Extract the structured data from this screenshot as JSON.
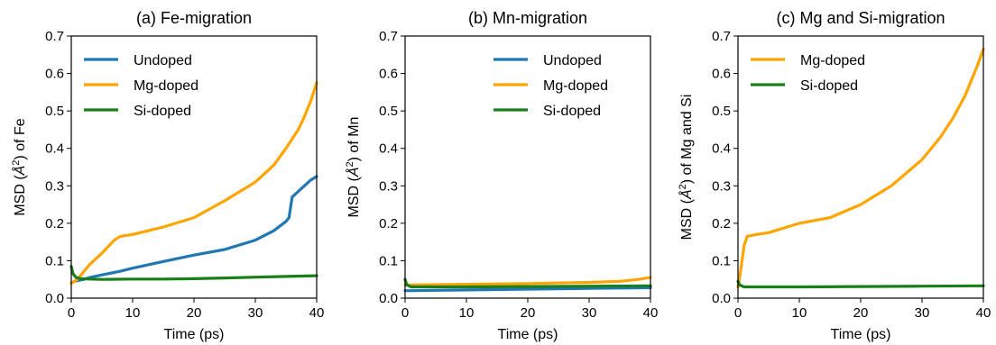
{
  "colors": {
    "undoped": "#1f77b4",
    "mg": "#ffa500",
    "si": "#1a7f1a"
  },
  "chart_data": [
    {
      "type": "line",
      "title": "(a) Fe-migration",
      "xlabel": "Time (ps)",
      "ylabel_prefix": "MSD (",
      "ylabel_symbol": "Å",
      "ylabel_sup": "2",
      "ylabel_suffix": ") of Fe",
      "xlim": [
        0,
        40
      ],
      "ylim": [
        0,
        0.7
      ],
      "xticks": [
        "0",
        "10",
        "20",
        "30",
        "40"
      ],
      "yticks": [
        "0.0",
        "0.1",
        "0.2",
        "0.3",
        "0.4",
        "0.5",
        "0.6",
        "0.7"
      ],
      "legend_position": "top-left",
      "series": [
        {
          "name": "Undoped",
          "color_key": "undoped",
          "x": [
            0,
            0.5,
            1,
            2,
            3,
            5,
            8,
            10,
            15,
            20,
            25,
            30,
            33,
            35,
            35.5,
            36,
            37,
            38,
            39,
            40
          ],
          "y": [
            0.04,
            0.045,
            0.047,
            0.05,
            0.055,
            0.062,
            0.072,
            0.08,
            0.098,
            0.115,
            0.13,
            0.155,
            0.18,
            0.205,
            0.215,
            0.27,
            0.285,
            0.3,
            0.315,
            0.325
          ]
        },
        {
          "name": "Mg-doped",
          "color_key": "mg",
          "x": [
            0,
            1,
            2,
            3,
            5,
            7,
            8,
            10,
            15,
            20,
            25,
            30,
            33,
            35,
            37,
            38,
            39,
            40
          ],
          "y": [
            0.04,
            0.05,
            0.07,
            0.09,
            0.12,
            0.155,
            0.165,
            0.17,
            0.19,
            0.215,
            0.26,
            0.31,
            0.355,
            0.4,
            0.45,
            0.485,
            0.525,
            0.575
          ]
        },
        {
          "name": "Si-doped",
          "color_key": "si",
          "x": [
            0,
            0.3,
            0.8,
            1.5,
            3,
            5,
            10,
            15,
            20,
            25,
            30,
            35,
            40
          ],
          "y": [
            0.085,
            0.065,
            0.055,
            0.052,
            0.051,
            0.05,
            0.051,
            0.051,
            0.052,
            0.054,
            0.056,
            0.058,
            0.06
          ]
        }
      ]
    },
    {
      "type": "line",
      "title": "(b) Mn-migration",
      "xlabel": "Time (ps)",
      "ylabel_prefix": "MSD (",
      "ylabel_symbol": "Å",
      "ylabel_sup": "2",
      "ylabel_suffix": ") of Mn",
      "xlim": [
        0,
        40
      ],
      "ylim": [
        0,
        0.7
      ],
      "xticks": [
        "0",
        "10",
        "20",
        "30",
        "40"
      ],
      "yticks": [
        "0.0",
        "0.1",
        "0.2",
        "0.3",
        "0.4",
        "0.5",
        "0.6",
        "0.7"
      ],
      "legend_position": "top-right",
      "series": [
        {
          "name": "Undoped",
          "color_key": "undoped",
          "x": [
            0,
            1,
            5,
            10,
            20,
            30,
            40
          ],
          "y": [
            0.02,
            0.02,
            0.021,
            0.022,
            0.024,
            0.026,
            0.028
          ]
        },
        {
          "name": "Mg-doped",
          "color_key": "mg",
          "x": [
            0,
            1,
            5,
            10,
            20,
            30,
            35,
            38,
            40
          ],
          "y": [
            0.035,
            0.035,
            0.036,
            0.037,
            0.039,
            0.042,
            0.045,
            0.05,
            0.055
          ]
        },
        {
          "name": "Si-doped",
          "color_key": "si",
          "x": [
            0,
            0.3,
            1,
            3,
            10,
            20,
            30,
            40
          ],
          "y": [
            0.05,
            0.035,
            0.03,
            0.03,
            0.03,
            0.031,
            0.032,
            0.033
          ]
        }
      ]
    },
    {
      "type": "line",
      "title": "(c) Mg and Si-migration",
      "xlabel": "Time (ps)",
      "ylabel_prefix": "MSD (",
      "ylabel_symbol": "Å",
      "ylabel_sup": "2",
      "ylabel_suffix": ") of Mg and Si",
      "xlim": [
        0,
        40
      ],
      "ylim": [
        0,
        0.7
      ],
      "xticks": [
        "0",
        "10",
        "20",
        "30",
        "40"
      ],
      "yticks": [
        "0.0",
        "0.1",
        "0.2",
        "0.3",
        "0.4",
        "0.5",
        "0.6",
        "0.7"
      ],
      "legend_position": "top-left",
      "series": [
        {
          "name": "Mg-doped",
          "color_key": "mg",
          "x": [
            0,
            0.5,
            1,
            1.5,
            3,
            5,
            8,
            10,
            15,
            20,
            25,
            30,
            33,
            35,
            37,
            38,
            39,
            40
          ],
          "y": [
            0.03,
            0.08,
            0.14,
            0.165,
            0.17,
            0.175,
            0.19,
            0.2,
            0.215,
            0.25,
            0.3,
            0.37,
            0.43,
            0.48,
            0.54,
            0.58,
            0.62,
            0.665
          ]
        },
        {
          "name": "Si-doped",
          "color_key": "si",
          "x": [
            0,
            0.3,
            1,
            3,
            10,
            20,
            30,
            40
          ],
          "y": [
            0.045,
            0.035,
            0.03,
            0.03,
            0.03,
            0.031,
            0.032,
            0.033
          ]
        }
      ]
    }
  ]
}
